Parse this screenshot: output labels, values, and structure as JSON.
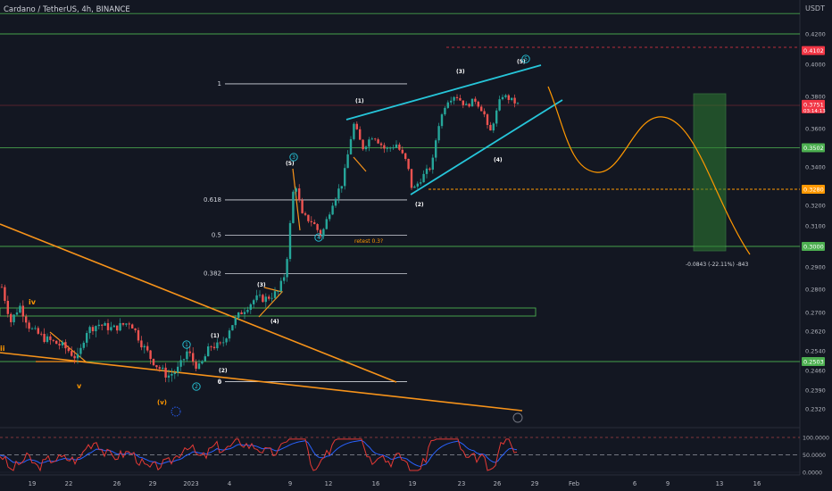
{
  "header": {
    "symbol_title": "Cardano / TetherUS, 4h, BINANCE",
    "currency": "USDT"
  },
  "chart_data": {
    "type": "candlestick",
    "price_axis": {
      "ylim": [
        0.227,
        0.434
      ],
      "ticks": [
        "0.4200",
        "0.4000",
        "0.3800",
        "0.3600",
        "0.3400",
        "0.3200",
        "0.3100",
        "0.2900",
        "0.2800",
        "0.2700",
        "0.2620",
        "0.2540",
        "0.2460",
        "0.2390",
        "0.2320"
      ],
      "tick_values": [
        0.42,
        0.4,
        0.38,
        0.36,
        0.34,
        0.32,
        0.31,
        0.29,
        0.28,
        0.27,
        0.262,
        0.254,
        0.246,
        0.239,
        0.232
      ]
    },
    "time_axis": {
      "labels": [
        "19",
        "22",
        "26",
        "29",
        "2023",
        "4",
        "9",
        "12",
        "16",
        "19",
        "23",
        "26",
        "29",
        "Feb",
        "6",
        "9",
        "13",
        "16"
      ]
    },
    "price_tags": [
      {
        "text": "0.4102",
        "value": 0.4102,
        "color": "#f23645"
      },
      {
        "text": "0.3751",
        "sub": "03:14:13",
        "value": 0.3751,
        "color": "#f23645"
      },
      {
        "text": "0.3502",
        "value": 0.3502,
        "color": "#4caf50"
      },
      {
        "text": "0.3280",
        "value": 0.328,
        "color": "#ff9800"
      },
      {
        "text": "0.3000",
        "value": 0.3,
        "color": "#4caf50"
      },
      {
        "text": "0.2503",
        "value": 0.2503,
        "color": "#4caf50"
      }
    ],
    "horizontal_levels": [
      {
        "value": 0.4299,
        "color": "#4caf50"
      },
      {
        "value": 0.42,
        "color": "#4caf50"
      },
      {
        "value": 0.3502,
        "color": "#4caf50"
      },
      {
        "value": 0.3,
        "color": "#4caf50"
      },
      {
        "value": 0.2503,
        "color": "#4caf50"
      }
    ],
    "fib_levels": [
      {
        "label": "1",
        "value": 0.3878
      },
      {
        "label": "0.618",
        "value": 0.3227
      },
      {
        "label": "0.5",
        "value": 0.3055
      },
      {
        "label": "0.382",
        "value": 0.287
      },
      {
        "label": "0",
        "value": 0.242
      }
    ],
    "wave_labels": [
      {
        "text": "iv",
        "color": "#ff9800"
      },
      {
        "text": "v",
        "color": "#ff9800"
      },
      {
        "text": "(v)",
        "color": "#ff9800"
      },
      {
        "text": "ii",
        "color": "#ff9800"
      },
      {
        "text": "1",
        "color": "#26c6da"
      },
      {
        "text": "2",
        "color": "#26c6da"
      },
      {
        "text": "3",
        "color": "#26c6da"
      },
      {
        "text": "4",
        "color": "#26c6da"
      },
      {
        "text": "5",
        "color": "#26c6da"
      },
      {
        "text": "(1)",
        "color": "#ffffff"
      },
      {
        "text": "(2)",
        "color": "#ffffff"
      },
      {
        "text": "(3)",
        "color": "#ffffff"
      },
      {
        "text": "(4)",
        "color": "#ffffff"
      },
      {
        "text": "(5)",
        "color": "#ffffff"
      },
      {
        "text": "0",
        "color": "#ffffff"
      }
    ],
    "annotations": {
      "retest": "retest 0.3?",
      "measure": "-0.0843 (-22.11%) -843"
    },
    "oscillator": {
      "ticks": [
        "100.0000",
        "50.0000",
        "0.0000"
      ],
      "tick_values": [
        100,
        50,
        0
      ],
      "colors": {
        "rsi": "#e53935",
        "ma": "#2962ff"
      }
    },
    "colors": {
      "up": "#26a69a",
      "down": "#ef5350",
      "trend": "#f7931a",
      "channel": "#26c6da",
      "projection": "#ff9800",
      "target_box": "#2e7d32"
    }
  }
}
